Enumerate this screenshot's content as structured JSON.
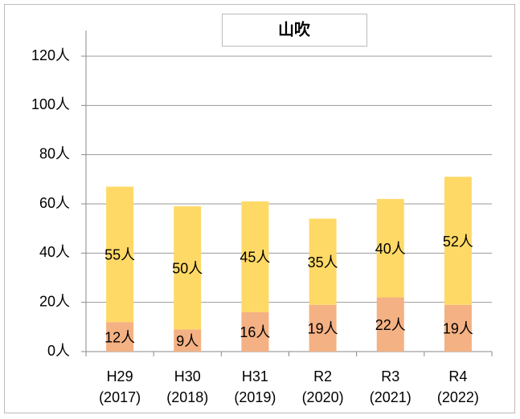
{
  "chart_data": {
    "type": "stacked_bar",
    "title": "山吹",
    "categories": [
      [
        "H29",
        "(2017)"
      ],
      [
        "H30",
        "(2018)"
      ],
      [
        "H31",
        "(2019)"
      ],
      [
        "R2",
        "(2020)"
      ],
      [
        "R3",
        "(2021)"
      ],
      [
        "R4",
        "(2022)"
      ]
    ],
    "series": [
      {
        "color": "#f4b183",
        "values": [
          12,
          9,
          16,
          19,
          22,
          19
        ],
        "value_labels": [
          "12人",
          "9人",
          "16人",
          "19人",
          "22人",
          "19人"
        ]
      },
      {
        "color": "#ffd966",
        "values": [
          55,
          50,
          45,
          35,
          40,
          52
        ],
        "value_labels": [
          "55人",
          "50人",
          "45人",
          "35人",
          "40人",
          "52人"
        ]
      }
    ],
    "ylim": [
      0,
      120
    ],
    "yticks": [
      {
        "value": 0,
        "label": "0人"
      },
      {
        "value": 20,
        "label": "20人"
      },
      {
        "value": 40,
        "label": "40人"
      },
      {
        "value": 60,
        "label": "60人"
      },
      {
        "value": 80,
        "label": "80人"
      },
      {
        "value": 100,
        "label": "100人"
      },
      {
        "value": 120,
        "label": "120人"
      }
    ],
    "grid": true
  }
}
